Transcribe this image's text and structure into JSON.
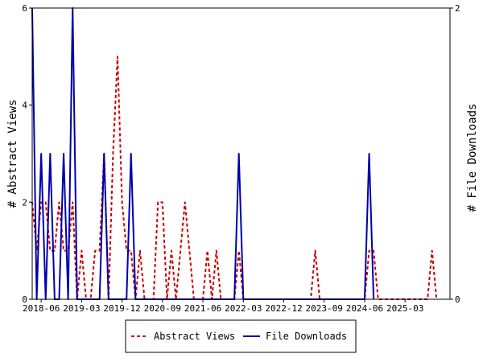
{
  "chart_data": {
    "type": "line",
    "ylabel_left": "# Abstract Views",
    "ylabel_right": "# File Downloads",
    "ylim_left": [
      0,
      6
    ],
    "ylim_right": [
      0,
      2
    ],
    "yticks_left": [
      "0",
      "2",
      "4",
      "6"
    ],
    "yticks_right": [
      "0",
      "2"
    ],
    "x_start": "2018-04",
    "x_end": "2026-01",
    "xticks": [
      "2018-06",
      "2019-03",
      "2019-12",
      "2020-09",
      "2021-06",
      "2022-03",
      "2022-12",
      "2023-09",
      "2024-06",
      "2025-03"
    ],
    "grid": false,
    "legend_position": "bottom-center",
    "series": [
      {
        "name": "Abstract Views",
        "axis": "left",
        "color": "#cc0000",
        "style": "dashed",
        "points": [
          [
            "2018-04",
            2
          ],
          [
            "2018-05",
            1
          ],
          [
            "2018-06",
            2
          ],
          [
            "2018-07",
            2
          ],
          [
            "2018-08",
            1
          ],
          [
            "2018-09",
            1
          ],
          [
            "2018-10",
            2
          ],
          [
            "2018-11",
            1
          ],
          [
            "2018-12",
            1
          ],
          [
            "2019-01",
            2
          ],
          [
            "2019-02",
            0
          ],
          [
            "2019-03",
            1
          ],
          [
            "2019-04",
            0
          ],
          [
            "2019-05",
            0
          ],
          [
            "2019-06",
            1
          ],
          [
            "2019-07",
            1
          ],
          [
            "2019-08",
            3
          ],
          [
            "2019-09",
            0
          ],
          [
            "2019-10",
            3
          ],
          [
            "2019-11",
            5
          ],
          [
            "2019-12",
            2
          ],
          [
            "2020-01",
            1
          ],
          [
            "2020-02",
            1
          ],
          [
            "2020-03",
            0
          ],
          [
            "2020-04",
            1
          ],
          [
            "2020-05",
            0
          ],
          [
            "2020-06",
            0
          ],
          [
            "2020-07",
            0
          ],
          [
            "2020-08",
            2
          ],
          [
            "2020-09",
            2
          ],
          [
            "2020-10",
            0
          ],
          [
            "2020-11",
            1
          ],
          [
            "2020-12",
            0
          ],
          [
            "2021-01",
            1
          ],
          [
            "2021-02",
            2
          ],
          [
            "2021-03",
            1
          ],
          [
            "2021-04",
            0
          ],
          [
            "2021-05",
            0
          ],
          [
            "2021-06",
            0
          ],
          [
            "2021-07",
            1
          ],
          [
            "2021-08",
            0
          ],
          [
            "2021-09",
            1
          ],
          [
            "2021-10",
            0
          ],
          [
            "2021-11",
            0
          ],
          [
            "2021-12",
            0
          ],
          [
            "2022-01",
            0
          ],
          [
            "2022-02",
            1
          ],
          [
            "2022-03",
            0
          ],
          [
            "2023-06",
            0
          ],
          [
            "2023-07",
            1
          ],
          [
            "2023-08",
            0
          ],
          [
            "2024-06",
            0
          ],
          [
            "2024-07",
            1
          ],
          [
            "2024-08",
            1
          ],
          [
            "2024-09",
            0
          ],
          [
            "2025-08",
            0
          ],
          [
            "2025-09",
            1
          ],
          [
            "2025-10",
            0
          ]
        ]
      },
      {
        "name": "File Downloads",
        "axis": "right",
        "color": "#0000aa",
        "style": "solid",
        "points": [
          [
            "2018-04",
            2
          ],
          [
            "2018-05",
            0
          ],
          [
            "2018-06",
            1
          ],
          [
            "2018-07",
            0
          ],
          [
            "2018-08",
            1
          ],
          [
            "2018-09",
            0
          ],
          [
            "2018-10",
            0
          ],
          [
            "2018-11",
            1
          ],
          [
            "2018-12",
            0
          ],
          [
            "2019-01",
            2
          ],
          [
            "2019-02",
            0
          ],
          [
            "2019-03",
            0
          ],
          [
            "2019-04",
            0
          ],
          [
            "2019-05",
            0
          ],
          [
            "2019-06",
            0
          ],
          [
            "2019-07",
            0
          ],
          [
            "2019-08",
            1
          ],
          [
            "2019-09",
            0
          ],
          [
            "2019-10",
            0
          ],
          [
            "2019-11",
            0
          ],
          [
            "2019-12",
            0
          ],
          [
            "2020-01",
            0
          ],
          [
            "2020-02",
            1
          ],
          [
            "2020-03",
            0
          ],
          [
            "2022-01",
            0
          ],
          [
            "2022-02",
            1
          ],
          [
            "2022-03",
            0
          ],
          [
            "2024-06",
            0
          ],
          [
            "2024-07",
            1
          ],
          [
            "2024-08",
            0
          ]
        ]
      }
    ]
  }
}
